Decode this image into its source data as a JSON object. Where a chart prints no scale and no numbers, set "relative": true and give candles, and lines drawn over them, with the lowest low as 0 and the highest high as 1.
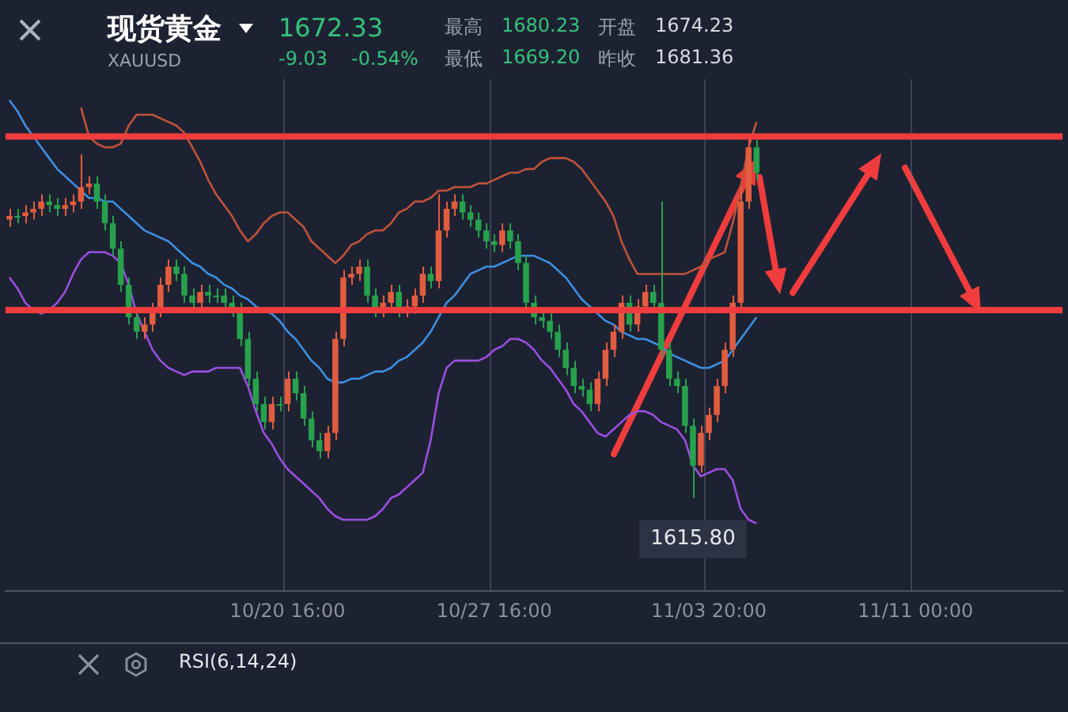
{
  "chart_data": {
    "type": "candlestick",
    "title": "现货黄金",
    "subtitle": "XAUUSD",
    "relative": true,
    "legend": false,
    "grid": "x",
    "categories": [
      null,
      null,
      null,
      null,
      null,
      null,
      null,
      null,
      null,
      null,
      null,
      null,
      null,
      null,
      null,
      null,
      null,
      null,
      null,
      null,
      null,
      null,
      null,
      null,
      null,
      null,
      null,
      null,
      null,
      null,
      null,
      null,
      null,
      null,
      null,
      "10/20 16:00",
      null,
      null,
      null,
      null,
      null,
      null,
      null,
      null,
      null,
      null,
      null,
      null,
      null,
      null,
      null,
      null,
      null,
      null,
      null,
      null,
      null,
      null,
      null,
      null,
      null,
      "10/27 16:00",
      null,
      null,
      null,
      null,
      null,
      null,
      null,
      null,
      null,
      null,
      null,
      null,
      null,
      null,
      null,
      null,
      null,
      null,
      null,
      null,
      null,
      null,
      null,
      null,
      null,
      null,
      "11/03 20:00",
      null,
      null,
      null,
      null,
      null,
      null,
      null,
      null,
      null,
      null,
      null,
      null,
      null,
      null,
      null,
      null,
      null,
      null,
      null,
      null,
      null,
      null,
      null,
      null,
      null,
      "11/11 00:00",
      null,
      null,
      null,
      null,
      null,
      null,
      null,
      null,
      null,
      null,
      null,
      null,
      null,
      null,
      null,
      null,
      null,
      null
    ],
    "series": [
      {
        "ohlc": [
          [
            0.77,
            0.8,
            0.75,
            0.78
          ],
          [
            0.78,
            0.8,
            0.76,
            0.78
          ],
          [
            0.78,
            0.81,
            0.76,
            0.79
          ],
          [
            0.79,
            0.82,
            0.77,
            0.8
          ],
          [
            0.8,
            0.84,
            0.78,
            0.82
          ],
          [
            0.82,
            0.84,
            0.79,
            0.81
          ],
          [
            0.81,
            0.83,
            0.78,
            0.8
          ],
          [
            0.8,
            0.83,
            0.78,
            0.81
          ],
          [
            0.81,
            0.84,
            0.79,
            0.82
          ],
          [
            0.82,
            0.95,
            0.8,
            0.86
          ],
          [
            0.86,
            0.89,
            0.84,
            0.87
          ],
          [
            0.87,
            0.89,
            0.8,
            0.82
          ],
          [
            0.82,
            0.84,
            0.74,
            0.76
          ],
          [
            0.76,
            0.78,
            0.67,
            0.69
          ],
          [
            0.69,
            0.71,
            0.57,
            0.59
          ],
          [
            0.59,
            0.61,
            0.48,
            0.5
          ],
          [
            0.5,
            0.52,
            0.44,
            0.46
          ],
          [
            0.46,
            0.5,
            0.44,
            0.48
          ],
          [
            0.48,
            0.54,
            0.46,
            0.52
          ],
          [
            0.52,
            0.61,
            0.5,
            0.59
          ],
          [
            0.59,
            0.66,
            0.57,
            0.64
          ],
          [
            0.64,
            0.66,
            0.6,
            0.62
          ],
          [
            0.62,
            0.64,
            0.54,
            0.56
          ],
          [
            0.56,
            0.58,
            0.52,
            0.54
          ],
          [
            0.54,
            0.59,
            0.52,
            0.57
          ],
          [
            0.57,
            0.59,
            0.54,
            0.56
          ],
          [
            0.56,
            0.58,
            0.54,
            0.56
          ],
          [
            0.56,
            0.58,
            0.52,
            0.54
          ],
          [
            0.54,
            0.56,
            0.5,
            0.52
          ],
          [
            0.52,
            0.54,
            0.42,
            0.44
          ],
          [
            0.44,
            0.46,
            0.31,
            0.33
          ],
          [
            0.33,
            0.35,
            0.24,
            0.26
          ],
          [
            0.26,
            0.28,
            0.19,
            0.21
          ],
          [
            0.21,
            0.28,
            0.19,
            0.26
          ],
          [
            0.26,
            0.28,
            0.24,
            0.26
          ],
          [
            0.26,
            0.35,
            0.24,
            0.33
          ],
          [
            0.33,
            0.35,
            0.27,
            0.29
          ],
          [
            0.29,
            0.31,
            0.2,
            0.22
          ],
          [
            0.22,
            0.24,
            0.14,
            0.16
          ],
          [
            0.16,
            0.18,
            0.11,
            0.13
          ],
          [
            0.13,
            0.2,
            0.11,
            0.18
          ],
          [
            0.18,
            0.46,
            0.16,
            0.44
          ],
          [
            0.44,
            0.63,
            0.42,
            0.61
          ],
          [
            0.61,
            0.64,
            0.59,
            0.62
          ],
          [
            0.62,
            0.66,
            0.6,
            0.64
          ],
          [
            0.64,
            0.66,
            0.54,
            0.56
          ],
          [
            0.56,
            0.58,
            0.5,
            0.52
          ],
          [
            0.52,
            0.56,
            0.5,
            0.54
          ],
          [
            0.54,
            0.59,
            0.52,
            0.57
          ],
          [
            0.57,
            0.59,
            0.5,
            0.52
          ],
          [
            0.52,
            0.55,
            0.5,
            0.53
          ],
          [
            0.53,
            0.58,
            0.51,
            0.56
          ],
          [
            0.56,
            0.64,
            0.54,
            0.62
          ],
          [
            0.62,
            0.64,
            0.58,
            0.6
          ],
          [
            0.6,
            0.84,
            0.58,
            0.74
          ],
          [
            0.74,
            0.82,
            0.72,
            0.8
          ],
          [
            0.8,
            0.84,
            0.78,
            0.82
          ],
          [
            0.82,
            0.84,
            0.77,
            0.79
          ],
          [
            0.79,
            0.81,
            0.75,
            0.77
          ],
          [
            0.77,
            0.79,
            0.72,
            0.74
          ],
          [
            0.74,
            0.76,
            0.69,
            0.71
          ],
          [
            0.71,
            0.73,
            0.68,
            0.7
          ],
          [
            0.7,
            0.76,
            0.68,
            0.74
          ],
          [
            0.74,
            0.76,
            0.69,
            0.71
          ],
          [
            0.71,
            0.73,
            0.63,
            0.65
          ],
          [
            0.65,
            0.67,
            0.52,
            0.54
          ],
          [
            0.54,
            0.56,
            0.48,
            0.5
          ],
          [
            0.5,
            0.52,
            0.47,
            0.49
          ],
          [
            0.49,
            0.51,
            0.44,
            0.46
          ],
          [
            0.46,
            0.48,
            0.39,
            0.41
          ],
          [
            0.41,
            0.43,
            0.34,
            0.36
          ],
          [
            0.36,
            0.38,
            0.29,
            0.31
          ],
          [
            0.31,
            0.33,
            0.28,
            0.3
          ],
          [
            0.3,
            0.32,
            0.24,
            0.26
          ],
          [
            0.26,
            0.35,
            0.24,
            0.33
          ],
          [
            0.33,
            0.43,
            0.31,
            0.41
          ],
          [
            0.41,
            0.48,
            0.39,
            0.46
          ],
          [
            0.46,
            0.56,
            0.44,
            0.54
          ],
          [
            0.54,
            0.56,
            0.46,
            0.48
          ],
          [
            0.48,
            0.55,
            0.46,
            0.53
          ],
          [
            0.53,
            0.59,
            0.51,
            0.57
          ],
          [
            0.57,
            0.59,
            0.52,
            0.54
          ],
          [
            0.54,
            0.82,
            0.39,
            0.41
          ],
          [
            0.41,
            0.43,
            0.31,
            0.33
          ],
          [
            0.33,
            0.35,
            0.29,
            0.31
          ],
          [
            0.31,
            0.33,
            0.18,
            0.2
          ],
          [
            0.2,
            0.22,
            0.0,
            0.09
          ],
          [
            0.09,
            0.2,
            0.07,
            0.18
          ],
          [
            0.18,
            0.25,
            0.16,
            0.23
          ],
          [
            0.23,
            0.33,
            0.21,
            0.31
          ],
          [
            0.31,
            0.43,
            0.29,
            0.41
          ],
          [
            0.41,
            0.56,
            0.39,
            0.54
          ],
          [
            0.54,
            0.86,
            0.52,
            0.82
          ],
          [
            0.82,
            1.0,
            0.8,
            0.97
          ],
          [
            0.97,
            0.99,
            0.88,
            0.9
          ],
          null,
          null,
          null,
          null,
          null,
          null,
          null,
          null,
          null,
          null,
          null,
          null,
          null,
          null,
          null,
          null,
          null,
          null,
          null,
          null,
          null,
          null,
          null,
          null,
          null,
          null,
          null,
          null,
          null,
          null,
          null,
          null,
          null,
          null,
          null,
          null,
          null,
          null
        ],
        "colors": [
          "#e25c3f",
          "#27a14c",
          "#e25c3f",
          "#e25c3f",
          "#e25c3f",
          "#27a14c",
          "#27a14c",
          "#e25c3f",
          "#e25c3f",
          "#e25c3f",
          "#e25c3f",
          "#27a14c",
          "#27a14c",
          "#27a14c",
          "#27a14c",
          "#27a14c",
          "#27a14c",
          "#e25c3f",
          "#e25c3f",
          "#e25c3f",
          "#e25c3f",
          "#27a14c",
          "#27a14c",
          "#27a14c",
          "#e25c3f",
          "#27a14c",
          "#27a14c",
          "#27a14c",
          "#27a14c",
          "#27a14c",
          "#27a14c",
          "#27a14c",
          "#27a14c",
          "#e25c3f",
          "#27a14c",
          "#e25c3f",
          "#27a14c",
          "#27a14c",
          "#27a14c",
          "#27a14c",
          "#e25c3f",
          "#e25c3f",
          "#e25c3f",
          "#e25c3f",
          "#e25c3f",
          "#27a14c",
          "#27a14c",
          "#e25c3f",
          "#e25c3f",
          "#27a14c",
          "#e25c3f",
          "#e25c3f",
          "#e25c3f",
          "#27a14c",
          "#e25c3f",
          "#e25c3f",
          "#e25c3f",
          "#27a14c",
          "#27a14c",
          "#27a14c",
          "#27a14c",
          "#27a14c",
          "#e25c3f",
          "#27a14c",
          "#27a14c",
          "#27a14c",
          "#27a14c",
          "#27a14c",
          "#27a14c",
          "#27a14c",
          "#27a14c",
          "#27a14c",
          "#27a14c",
          "#27a14c",
          "#e25c3f",
          "#e25c3f",
          "#e25c3f",
          "#e25c3f",
          "#27a14c",
          "#e25c3f",
          "#e25c3f",
          "#27a14c",
          "#27a14c",
          "#27a14c",
          "#27a14c",
          "#27a14c",
          "#27a14c",
          "#e25c3f",
          "#e25c3f",
          "#e25c3f",
          "#e25c3f",
          "#e25c3f",
          "#e25c3f",
          "#e25c3f",
          "#27a14c",
          null,
          null,
          null,
          null,
          null,
          null,
          null,
          null,
          null,
          null,
          null,
          null,
          null,
          null,
          null,
          null,
          null,
          null,
          null,
          null,
          null,
          null,
          null,
          null,
          null,
          null,
          null,
          null,
          null,
          null,
          null,
          null,
          null,
          null,
          null,
          null,
          null,
          null
        ]
      },
      {
        "type": "line",
        "color": "#c0523a",
        "values": [
          null,
          null,
          null,
          null,
          null,
          null,
          null,
          null,
          null,
          1.08,
          1.0,
          0.98,
          0.97,
          0.97,
          0.98,
          1.03,
          1.06,
          1.06,
          1.06,
          1.05,
          1.04,
          1.03,
          1.01,
          0.97,
          0.93,
          0.88,
          0.84,
          0.81,
          0.78,
          0.74,
          0.71,
          0.73,
          0.76,
          0.78,
          0.79,
          0.79,
          0.77,
          0.75,
          0.71,
          0.69,
          0.67,
          0.65,
          0.67,
          0.7,
          0.71,
          0.73,
          0.74,
          0.74,
          0.76,
          0.79,
          0.8,
          0.82,
          0.82,
          0.83,
          0.85,
          0.85,
          0.86,
          0.86,
          0.86,
          0.87,
          0.87,
          0.88,
          0.89,
          0.9,
          0.9,
          0.91,
          0.91,
          0.93,
          0.94,
          0.94,
          0.94,
          0.93,
          0.91,
          0.88,
          0.85,
          0.82,
          0.78,
          0.71,
          0.66,
          0.62,
          0.62,
          0.62,
          0.62,
          0.62,
          0.62,
          0.62,
          0.63,
          0.64,
          0.66,
          0.67,
          0.68,
          0.76,
          0.86,
          0.97,
          1.04,
          null,
          null,
          null,
          null,
          null,
          null,
          null,
          null,
          null,
          null,
          null,
          null,
          null,
          null,
          null,
          null,
          null,
          null,
          null,
          null,
          null,
          null,
          null,
          null,
          null,
          null,
          null,
          null,
          null,
          null,
          null,
          null,
          null,
          null,
          null,
          null,
          null,
          null
        ]
      },
      {
        "type": "line",
        "color": "#3d8fe0",
        "values": [
          1.1,
          1.07,
          1.03,
          1.0,
          0.97,
          0.94,
          0.91,
          0.89,
          0.87,
          0.85,
          0.83,
          0.83,
          0.82,
          0.82,
          0.8,
          0.78,
          0.76,
          0.74,
          0.73,
          0.72,
          0.71,
          0.69,
          0.67,
          0.65,
          0.64,
          0.62,
          0.61,
          0.59,
          0.58,
          0.56,
          0.55,
          0.53,
          0.52,
          0.51,
          0.49,
          0.46,
          0.44,
          0.41,
          0.38,
          0.36,
          0.33,
          0.32,
          0.32,
          0.33,
          0.33,
          0.34,
          0.35,
          0.35,
          0.36,
          0.38,
          0.39,
          0.41,
          0.43,
          0.46,
          0.5,
          0.54,
          0.56,
          0.59,
          0.62,
          0.63,
          0.64,
          0.64,
          0.65,
          0.66,
          0.67,
          0.67,
          0.67,
          0.66,
          0.65,
          0.63,
          0.61,
          0.58,
          0.55,
          0.53,
          0.51,
          0.49,
          0.48,
          0.46,
          0.45,
          0.44,
          0.44,
          0.43,
          0.42,
          0.4,
          0.39,
          0.38,
          0.37,
          0.36,
          0.36,
          0.37,
          0.38,
          0.41,
          0.44,
          0.47,
          0.5,
          null,
          null,
          null,
          null,
          null,
          null,
          null,
          null,
          null,
          null,
          null,
          null,
          null,
          null,
          null,
          null,
          null,
          null,
          null,
          null,
          null,
          null,
          null,
          null,
          null,
          null,
          null,
          null,
          null,
          null,
          null,
          null,
          null,
          null,
          null,
          null,
          null,
          null
        ]
      },
      {
        "type": "line",
        "color": "#9a4fe0",
        "values": [
          0.61,
          0.58,
          0.54,
          0.52,
          0.51,
          0.52,
          0.54,
          0.57,
          0.62,
          0.66,
          0.68,
          0.68,
          0.68,
          0.67,
          0.65,
          0.59,
          0.51,
          0.46,
          0.41,
          0.38,
          0.36,
          0.35,
          0.34,
          0.35,
          0.35,
          0.35,
          0.36,
          0.36,
          0.36,
          0.36,
          0.31,
          0.24,
          0.18,
          0.15,
          0.11,
          0.08,
          0.06,
          0.04,
          0.02,
          0.0,
          -0.03,
          -0.05,
          -0.06,
          -0.06,
          -0.06,
          -0.06,
          -0.05,
          -0.03,
          0.0,
          0.01,
          0.03,
          0.05,
          0.07,
          0.16,
          0.29,
          0.36,
          0.38,
          0.38,
          0.38,
          0.38,
          0.39,
          0.41,
          0.42,
          0.44,
          0.44,
          0.43,
          0.41,
          0.38,
          0.36,
          0.33,
          0.3,
          0.26,
          0.24,
          0.21,
          0.18,
          0.17,
          0.19,
          0.21,
          0.23,
          0.24,
          0.24,
          0.23,
          0.21,
          0.2,
          0.19,
          0.16,
          0.09,
          0.06,
          0.07,
          0.08,
          0.08,
          0.05,
          -0.03,
          -0.06,
          -0.07,
          null,
          null,
          null,
          null,
          null,
          null,
          null,
          null,
          null,
          null,
          null,
          null,
          null,
          null,
          null,
          null,
          null,
          null,
          null,
          null,
          null,
          null,
          null,
          null,
          null,
          null,
          null,
          null,
          null,
          null,
          null,
          null,
          null,
          null,
          null,
          null,
          null,
          null
        ]
      }
    ],
    "ref_lines": [
      {
        "axis": "y",
        "value": 1.0,
        "color": "#f03c3c"
      },
      {
        "axis": "y",
        "value": 0.52,
        "color": "#f03c3c"
      }
    ],
    "annotations": [
      "1672.33",
      "-9.03",
      "-0.54%",
      "最高",
      "1680.23",
      "开盘",
      "1674.23",
      "最低",
      "1669.20",
      "昨收",
      "1681.36",
      {
        "text": "1615.80",
        "y": 0
      },
      "RSI(6,14,24)"
    ]
  }
}
